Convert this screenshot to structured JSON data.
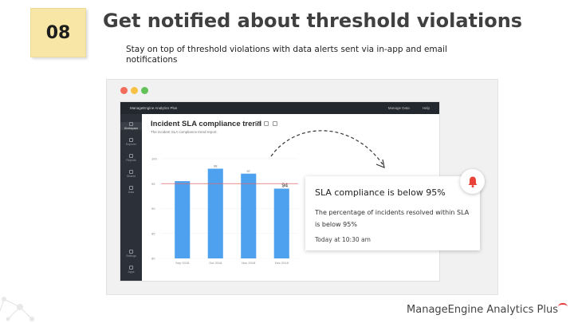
{
  "slide": {
    "number": "08",
    "heading": "Get notified about threshold violations",
    "subheading": "Stay on top of threshold violations with data alerts sent via in-app and email notifications"
  },
  "window_dots": [
    "#f26b5b",
    "#f7c244",
    "#63c15a"
  ],
  "app": {
    "brand": "ManageEngine Analytics Plus",
    "top_right_items": [
      "Manage Data",
      "Help"
    ],
    "sidebar_items": [
      "Workspace",
      "Explorer",
      "Reports",
      "Shared",
      "Data",
      "Settings",
      "Apps"
    ],
    "report_title": "Incident SLA compliance trend",
    "report_subtitle": "The incident SLA compliance trend report."
  },
  "chart_data": {
    "type": "bar",
    "categories": [
      "Sep 2018",
      "Oct 2018",
      "Nov 2018",
      "Dec 2018"
    ],
    "values": [
      95.5,
      98,
      97,
      94
    ],
    "data_labels": [
      "",
      "98",
      "97",
      "94"
    ],
    "ylim": [
      80,
      100
    ],
    "y_ticks": [
      "80",
      "85",
      "90",
      "95",
      "100"
    ],
    "threshold": 95,
    "bar_color": "#4ea1ee",
    "threshold_color": "#d96e6e"
  },
  "alert": {
    "title": "SLA compliance is below 95%",
    "body": "The percentage of incidents resolved within SLA is below 95%",
    "time": "Today at 10:30 am",
    "icon": "bell-icon",
    "icon_color": "#e94238"
  },
  "footer": {
    "logo_text": "ManageEngine Analytics Plus"
  }
}
